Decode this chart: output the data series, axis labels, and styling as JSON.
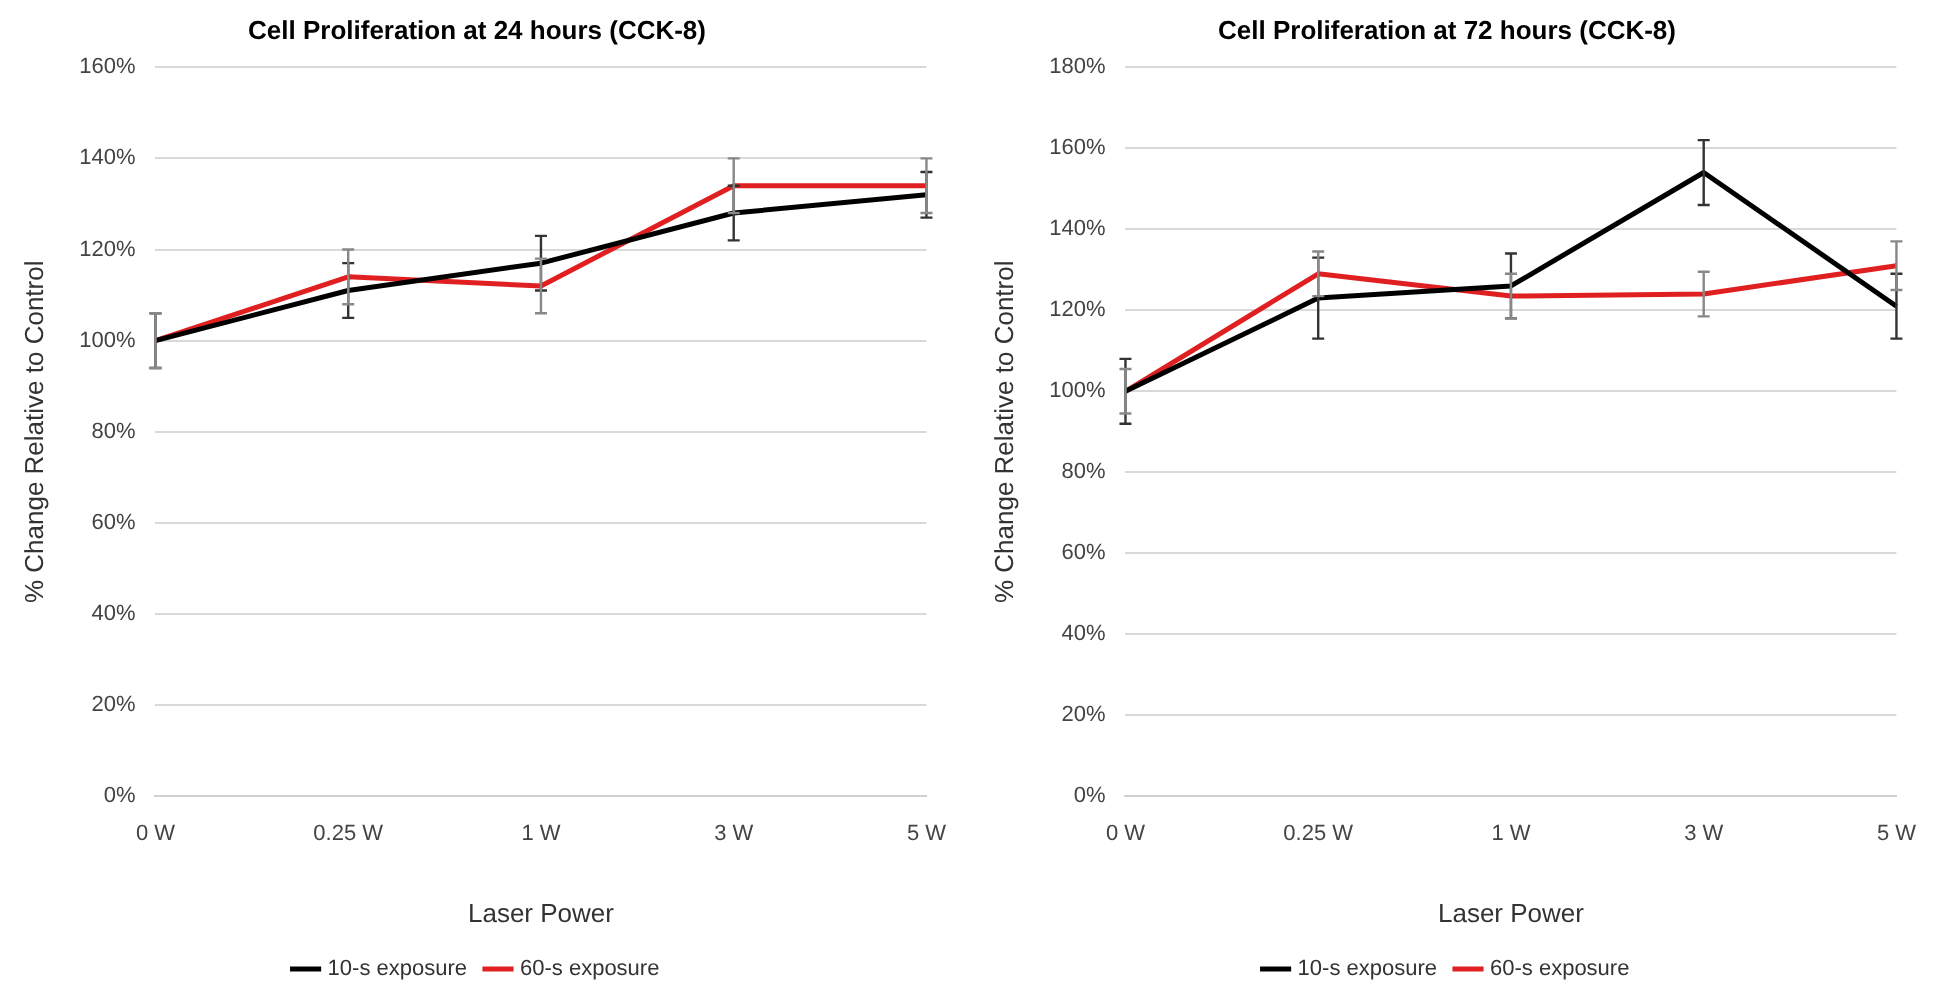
{
  "chart_data": [
    {
      "type": "line",
      "title": "Cell Proliferation at 24 hours (CCK-8)",
      "xlabel": "Laser Power",
      "ylabel": "% Change Relative to Control",
      "categories": [
        "0 W",
        "0.25 W",
        "1 W",
        "3 W",
        "5 W"
      ],
      "series": [
        {
          "name": "10-s exposure",
          "color": "#000000",
          "values": [
            100,
            111,
            117,
            128,
            132
          ],
          "errors": [
            6,
            6,
            6,
            6,
            5
          ]
        },
        {
          "name": "60-s exposure",
          "color": "#e02020",
          "values": [
            100,
            114,
            112,
            134,
            134
          ],
          "errors": [
            6,
            6,
            6,
            6,
            6
          ]
        }
      ],
      "ylim": [
        0,
        160
      ],
      "yticks": [
        {
          "value": 0,
          "label": "0%"
        },
        {
          "value": 20,
          "label": "20%"
        },
        {
          "value": 40,
          "label": "40%"
        },
        {
          "value": 60,
          "label": "60%"
        },
        {
          "value": 80,
          "label": "80%"
        },
        {
          "value": 100,
          "label": "100%"
        },
        {
          "value": 120,
          "label": "120%"
        },
        {
          "value": 140,
          "label": "140%"
        },
        {
          "value": 160,
          "label": "160%"
        }
      ],
      "grid": "y",
      "legend": "bottom",
      "marker": "none",
      "line_style": "solid"
    },
    {
      "type": "line",
      "title": "Cell Proliferation at 72 hours (CCK-8)",
      "xlabel": "Laser Power",
      "ylabel": "% Change Relative to Control",
      "categories": [
        "0 W",
        "0.25 W",
        "1 W",
        "3 W",
        "5 W"
      ],
      "series": [
        {
          "name": "10-s exposure",
          "color": "#000000",
          "values": [
            100,
            123,
            126,
            154,
            121
          ],
          "errors": [
            8,
            10,
            8,
            8,
            8
          ]
        },
        {
          "name": "60-s exposure",
          "color": "#e02020",
          "values": [
            100,
            129,
            123.5,
            124,
            131
          ],
          "errors": [
            5.5,
            5.5,
            5.5,
            5.5,
            6
          ]
        }
      ],
      "ylim": [
        0,
        180
      ],
      "yticks": [
        {
          "value": 0,
          "label": "0%"
        },
        {
          "value": 20,
          "label": "20%"
        },
        {
          "value": 40,
          "label": "40%"
        },
        {
          "value": 60,
          "label": "60%"
        },
        {
          "value": 80,
          "label": "80%"
        },
        {
          "value": 100,
          "label": "100%"
        },
        {
          "value": 120,
          "label": "120%"
        },
        {
          "value": 140,
          "label": "140%"
        },
        {
          "value": 160,
          "label": "160%"
        },
        {
          "value": 180,
          "label": "180%"
        }
      ],
      "grid": "y",
      "legend": "bottom",
      "marker": "none",
      "line_style": "solid"
    }
  ]
}
